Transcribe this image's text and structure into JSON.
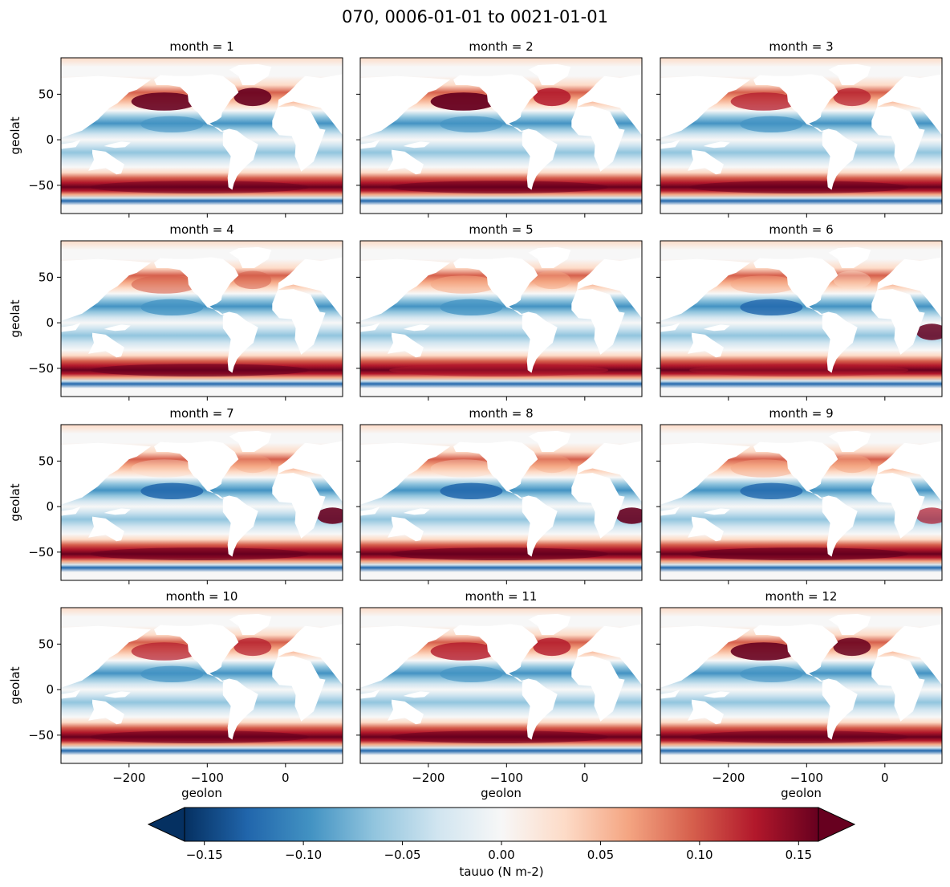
{
  "chart_data": {
    "type": "heatmap",
    "title": "070, 0006-01-01 to 0021-01-01",
    "variable": "tauuo",
    "panel_title_prefix": "month = ",
    "panels": [
      {
        "title": "month = 1"
      },
      {
        "title": "month = 2"
      },
      {
        "title": "month = 3"
      },
      {
        "title": "month = 4"
      },
      {
        "title": "month = 5"
      },
      {
        "title": "month = 6"
      },
      {
        "title": "month = 7"
      },
      {
        "title": "month = 8"
      },
      {
        "title": "month = 9"
      },
      {
        "title": "month = 10"
      },
      {
        "title": "month = 11"
      },
      {
        "title": "month = 12"
      }
    ],
    "xlabel": "geolon",
    "ylabel": "geolat",
    "xlim": [
      -287,
      73
    ],
    "ylim": [
      -81,
      90
    ],
    "xticks": [
      -200,
      -100,
      0
    ],
    "xtick_labels": [
      "−200",
      "−100",
      "0"
    ],
    "yticks": [
      50,
      0,
      -50
    ],
    "ytick_labels": [
      "50",
      "0",
      "−50"
    ],
    "colorbar": {
      "label": "tauuo (N m-2)",
      "vmin": -0.16,
      "vmax": 0.16,
      "extend": "both",
      "cmap": "RdBu_r",
      "ticks": [
        -0.15,
        -0.1,
        -0.05,
        0.0,
        0.05,
        0.1,
        0.15
      ],
      "tick_labels": [
        "−0.15",
        "−0.10",
        "−0.05",
        "0.00",
        "0.05",
        "0.10",
        "0.15"
      ]
    },
    "colors": [
      "#053061",
      "#2166ac",
      "#4393c3",
      "#92c5de",
      "#d1e5f0",
      "#f7f7f7",
      "#fddbc7",
      "#f4a582",
      "#d6604d",
      "#b2182b",
      "#67001f"
    ]
  }
}
